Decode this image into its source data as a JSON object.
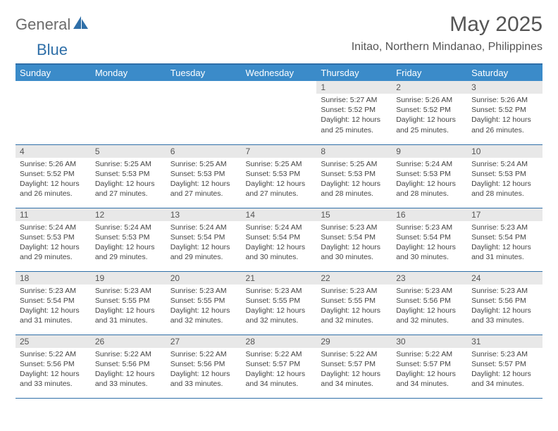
{
  "logo": {
    "general": "General",
    "blue": "Blue"
  },
  "title": "May 2025",
  "location": "Initao, Northern Mindanao, Philippines",
  "colors": {
    "header_bg": "#3b8bc9",
    "border": "#2f6fa8",
    "daynum_bg": "#e8e8e8"
  },
  "weekdays": [
    "Sunday",
    "Monday",
    "Tuesday",
    "Wednesday",
    "Thursday",
    "Friday",
    "Saturday"
  ],
  "weeks": [
    [
      null,
      null,
      null,
      null,
      {
        "n": "1",
        "sr": "5:27 AM",
        "ss": "5:52 PM",
        "dl": "12 hours and 25 minutes."
      },
      {
        "n": "2",
        "sr": "5:26 AM",
        "ss": "5:52 PM",
        "dl": "12 hours and 25 minutes."
      },
      {
        "n": "3",
        "sr": "5:26 AM",
        "ss": "5:52 PM",
        "dl": "12 hours and 26 minutes."
      }
    ],
    [
      {
        "n": "4",
        "sr": "5:26 AM",
        "ss": "5:52 PM",
        "dl": "12 hours and 26 minutes."
      },
      {
        "n": "5",
        "sr": "5:25 AM",
        "ss": "5:53 PM",
        "dl": "12 hours and 27 minutes."
      },
      {
        "n": "6",
        "sr": "5:25 AM",
        "ss": "5:53 PM",
        "dl": "12 hours and 27 minutes."
      },
      {
        "n": "7",
        "sr": "5:25 AM",
        "ss": "5:53 PM",
        "dl": "12 hours and 27 minutes."
      },
      {
        "n": "8",
        "sr": "5:25 AM",
        "ss": "5:53 PM",
        "dl": "12 hours and 28 minutes."
      },
      {
        "n": "9",
        "sr": "5:24 AM",
        "ss": "5:53 PM",
        "dl": "12 hours and 28 minutes."
      },
      {
        "n": "10",
        "sr": "5:24 AM",
        "ss": "5:53 PM",
        "dl": "12 hours and 28 minutes."
      }
    ],
    [
      {
        "n": "11",
        "sr": "5:24 AM",
        "ss": "5:53 PM",
        "dl": "12 hours and 29 minutes."
      },
      {
        "n": "12",
        "sr": "5:24 AM",
        "ss": "5:53 PM",
        "dl": "12 hours and 29 minutes."
      },
      {
        "n": "13",
        "sr": "5:24 AM",
        "ss": "5:54 PM",
        "dl": "12 hours and 29 minutes."
      },
      {
        "n": "14",
        "sr": "5:24 AM",
        "ss": "5:54 PM",
        "dl": "12 hours and 30 minutes."
      },
      {
        "n": "15",
        "sr": "5:23 AM",
        "ss": "5:54 PM",
        "dl": "12 hours and 30 minutes."
      },
      {
        "n": "16",
        "sr": "5:23 AM",
        "ss": "5:54 PM",
        "dl": "12 hours and 30 minutes."
      },
      {
        "n": "17",
        "sr": "5:23 AM",
        "ss": "5:54 PM",
        "dl": "12 hours and 31 minutes."
      }
    ],
    [
      {
        "n": "18",
        "sr": "5:23 AM",
        "ss": "5:54 PM",
        "dl": "12 hours and 31 minutes."
      },
      {
        "n": "19",
        "sr": "5:23 AM",
        "ss": "5:55 PM",
        "dl": "12 hours and 31 minutes."
      },
      {
        "n": "20",
        "sr": "5:23 AM",
        "ss": "5:55 PM",
        "dl": "12 hours and 32 minutes."
      },
      {
        "n": "21",
        "sr": "5:23 AM",
        "ss": "5:55 PM",
        "dl": "12 hours and 32 minutes."
      },
      {
        "n": "22",
        "sr": "5:23 AM",
        "ss": "5:55 PM",
        "dl": "12 hours and 32 minutes."
      },
      {
        "n": "23",
        "sr": "5:23 AM",
        "ss": "5:56 PM",
        "dl": "12 hours and 32 minutes."
      },
      {
        "n": "24",
        "sr": "5:23 AM",
        "ss": "5:56 PM",
        "dl": "12 hours and 33 minutes."
      }
    ],
    [
      {
        "n": "25",
        "sr": "5:22 AM",
        "ss": "5:56 PM",
        "dl": "12 hours and 33 minutes."
      },
      {
        "n": "26",
        "sr": "5:22 AM",
        "ss": "5:56 PM",
        "dl": "12 hours and 33 minutes."
      },
      {
        "n": "27",
        "sr": "5:22 AM",
        "ss": "5:56 PM",
        "dl": "12 hours and 33 minutes."
      },
      {
        "n": "28",
        "sr": "5:22 AM",
        "ss": "5:57 PM",
        "dl": "12 hours and 34 minutes."
      },
      {
        "n": "29",
        "sr": "5:22 AM",
        "ss": "5:57 PM",
        "dl": "12 hours and 34 minutes."
      },
      {
        "n": "30",
        "sr": "5:22 AM",
        "ss": "5:57 PM",
        "dl": "12 hours and 34 minutes."
      },
      {
        "n": "31",
        "sr": "5:23 AM",
        "ss": "5:57 PM",
        "dl": "12 hours and 34 minutes."
      }
    ]
  ],
  "labels": {
    "sunrise": "Sunrise: ",
    "sunset": "Sunset: ",
    "daylight": "Daylight: "
  }
}
